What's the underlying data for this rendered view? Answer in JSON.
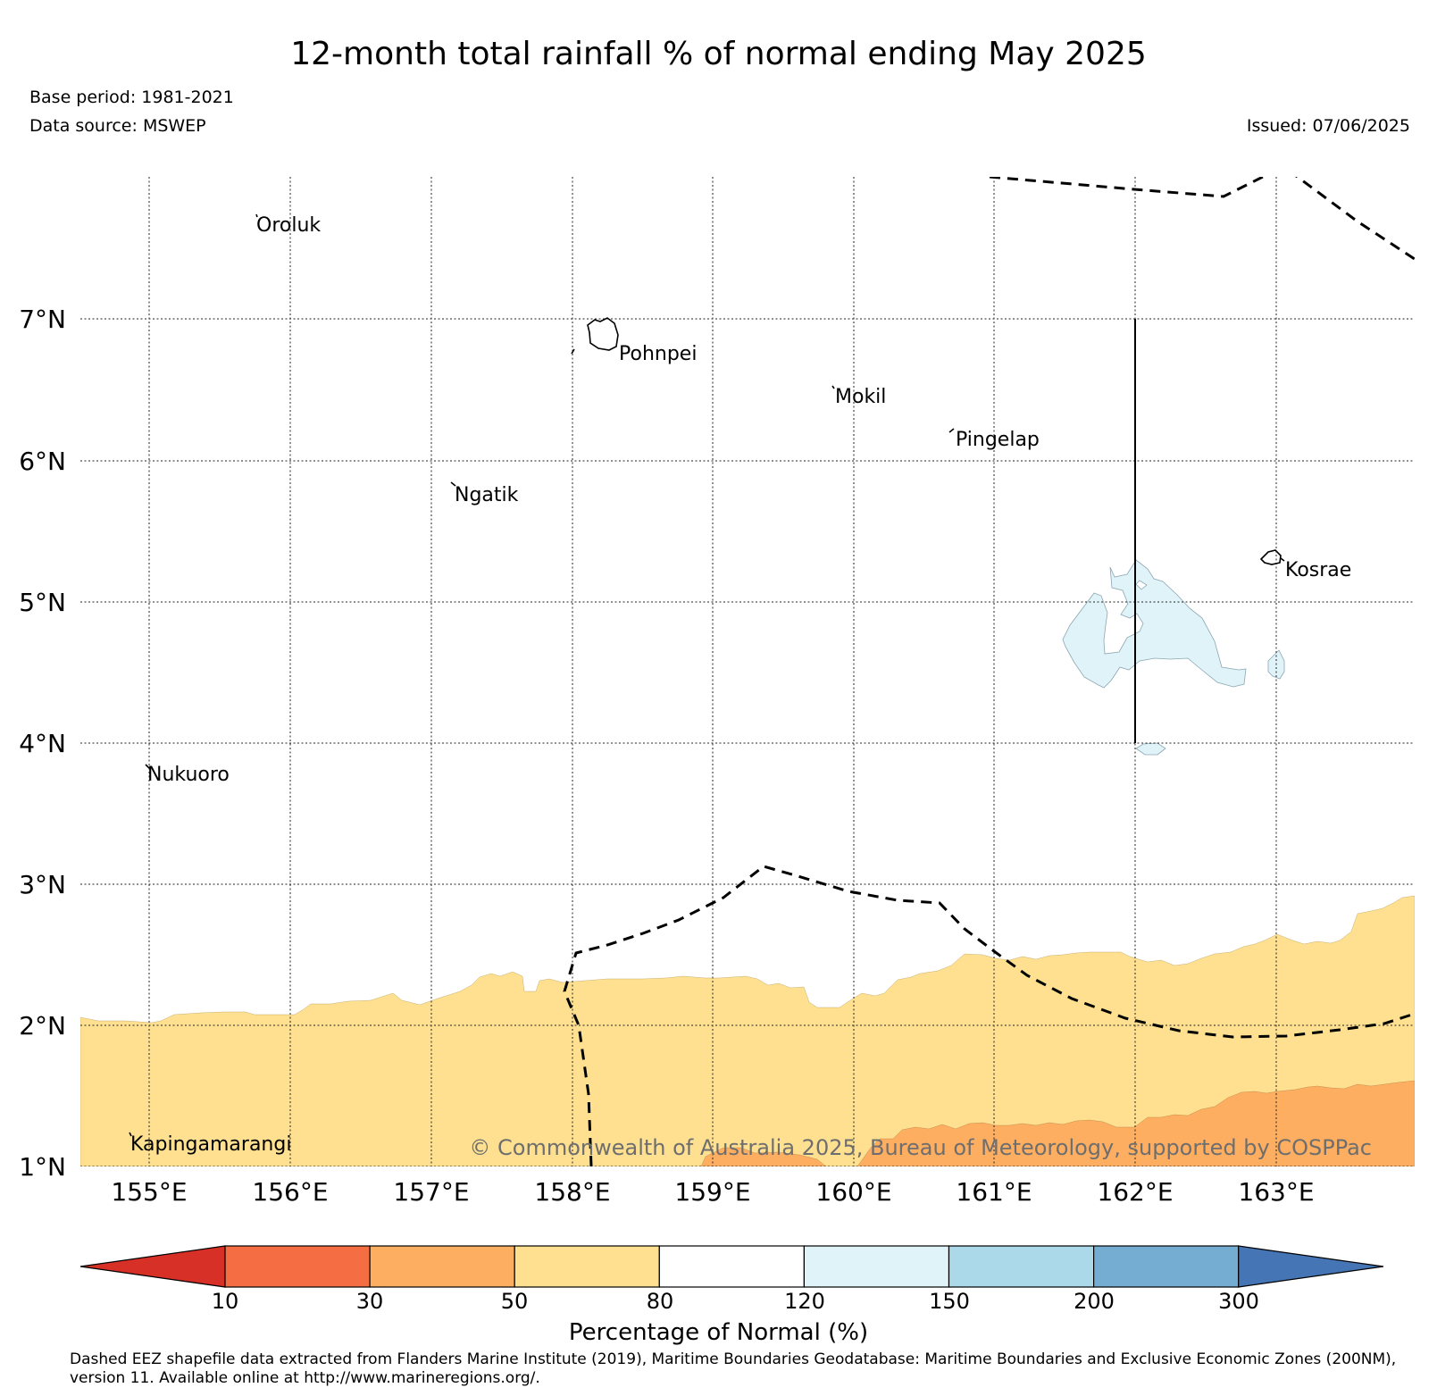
{
  "title": "12-month total rainfall % of normal ending May 2025",
  "base_period": "Base period: 1981-2021",
  "data_source": "Data source: MSWEP",
  "issued": "Issued: 07/06/2025",
  "copyright": "© Commonwealth of Australia 2025, Bureau of Meteorology, supported by COSPPac",
  "footnote": "Dashed EEZ shapefile data extracted from Flanders Marine Institute (2019), Maritime Boundaries Geodatabase: Maritime Boundaries and Exclusive Economic Zones (200NM), version 11. Available online at http://www.marineregions.org/.",
  "map": {
    "lat_labels": [
      "7°N",
      "6°N",
      "5°N",
      "4°N",
      "3°N",
      "2°N",
      "1°N"
    ],
    "lon_labels": [
      "155°E",
      "156°E",
      "157°E",
      "158°E",
      "159°E",
      "160°E",
      "161°E",
      "162°E",
      "163°E"
    ],
    "lat_range": [
      1,
      8
    ],
    "lon_range": [
      154.5,
      164
    ],
    "places": [
      "Oroluk",
      "Pohnpei",
      "Mokil",
      "Pingelap",
      "Ngatik",
      "Kosrae",
      "Nukuoro",
      "Kapingamarangi"
    ]
  },
  "colorbar": {
    "title": "Percentage of Normal (%)",
    "ticks": [
      "10",
      "30",
      "50",
      "80",
      "120",
      "150",
      "200",
      "300"
    ],
    "colors": [
      "#d73027",
      "#f46d43",
      "#fdae61",
      "#fee090",
      "#ffffff",
      "#e0f3f8",
      "#abd9e9",
      "#74add1",
      "#4575b4"
    ]
  }
}
